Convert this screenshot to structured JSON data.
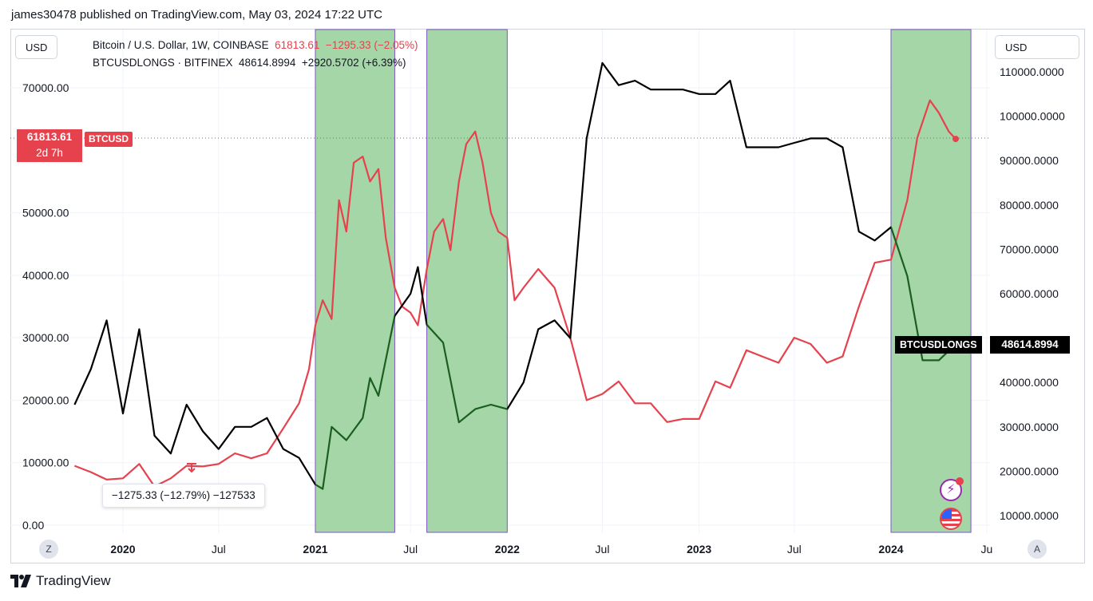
{
  "header": {
    "published": "james30478 published on TradingView.com, May 03, 2024 17:22 UTC"
  },
  "toolbar": {
    "left_currency": "USD",
    "right_currency": "USD"
  },
  "legend": {
    "main_title": "Bitcoin / U.S. Dollar, 1W, COINBASE",
    "main_price": "61813.61",
    "main_change": "−1295.33 (−2.05%)",
    "second_title": "BTCUSDLONGS · BITFINEX",
    "second_price": "48614.8994",
    "second_change": "+2920.5702 (+6.39%)"
  },
  "price_tag": {
    "value": "61813.61",
    "countdown": "2d 7h",
    "symbol": "BTCUSD"
  },
  "longs_tag": {
    "symbol": "BTCUSDLONGS",
    "value": "48614.8994"
  },
  "tooltip": {
    "text": "−1275.33 (−12.79%) −127533"
  },
  "footer": {
    "brand": "TradingView"
  },
  "buttons": {
    "left": "Z",
    "right": "A"
  },
  "icons": {
    "flash": "lightning-icon",
    "flag": "us-flag-icon"
  },
  "colors": {
    "btc": "#e5424d",
    "longs": "#000000",
    "highlight": "#a5d6a7",
    "highlight_border": "#7e57c2",
    "longs_in_zone": "#1b5e20"
  },
  "chart_data": {
    "type": "line",
    "interval": "1W",
    "x_tick_labels": [
      "2020",
      "Jul",
      "2021",
      "Jul",
      "2022",
      "Jul",
      "2023",
      "Jul",
      "2024",
      "Ju"
    ],
    "x_tick_dates": [
      "2020-01-01",
      "2020-07-01",
      "2021-01-01",
      "2021-07-01",
      "2022-01-01",
      "2022-07-01",
      "2023-01-01",
      "2023-07-01",
      "2024-01-01",
      "2024-07-01"
    ],
    "left_axis": {
      "ticks": [
        "0.00",
        "10000.00",
        "20000.00",
        "30000.00",
        "40000.00",
        "50000.00",
        "70000.00"
      ],
      "ylim": [
        0,
        70000
      ]
    },
    "right_axis": {
      "ticks": [
        "10000.0000",
        "20000.0000",
        "30000.0000",
        "40000.0000",
        "60000.0000",
        "70000.0000",
        "80000.0000",
        "90000.0000",
        "100000.0000",
        "110000.0000"
      ],
      "ylim": [
        10000,
        110000
      ]
    },
    "highlight_ranges": [
      [
        "2021-01-01",
        "2021-06-01"
      ],
      [
        "2021-08-01",
        "2022-01-01"
      ],
      [
        "2024-01-01",
        "2024-06-01"
      ]
    ],
    "series": [
      {
        "name": "Bitcoin / U.S. Dollar",
        "axis": "left",
        "points": [
          [
            "2019-10-01",
            9500
          ],
          [
            "2019-11-01",
            8500
          ],
          [
            "2019-12-01",
            7300
          ],
          [
            "2020-01-01",
            7500
          ],
          [
            "2020-02-01",
            9800
          ],
          [
            "2020-03-01",
            6200
          ],
          [
            "2020-04-01",
            7500
          ],
          [
            "2020-05-01",
            9500
          ],
          [
            "2020-06-01",
            9400
          ],
          [
            "2020-07-01",
            9800
          ],
          [
            "2020-08-01",
            11500
          ],
          [
            "2020-09-01",
            10700
          ],
          [
            "2020-10-01",
            11500
          ],
          [
            "2020-11-01",
            15500
          ],
          [
            "2020-12-01",
            19500
          ],
          [
            "2020-12-20",
            25000
          ],
          [
            "2021-01-01",
            32000
          ],
          [
            "2021-01-15",
            36000
          ],
          [
            "2021-02-01",
            33000
          ],
          [
            "2021-02-15",
            52000
          ],
          [
            "2021-03-01",
            47000
          ],
          [
            "2021-03-15",
            58000
          ],
          [
            "2021-04-01",
            59000
          ],
          [
            "2021-04-15",
            55000
          ],
          [
            "2021-05-01",
            57000
          ],
          [
            "2021-05-15",
            46000
          ],
          [
            "2021-06-01",
            38000
          ],
          [
            "2021-06-15",
            35000
          ],
          [
            "2021-07-01",
            34000
          ],
          [
            "2021-07-15",
            32000
          ],
          [
            "2021-08-01",
            41000
          ],
          [
            "2021-08-15",
            47000
          ],
          [
            "2021-09-01",
            49000
          ],
          [
            "2021-09-15",
            44000
          ],
          [
            "2021-10-01",
            55000
          ],
          [
            "2021-10-15",
            61000
          ],
          [
            "2021-11-01",
            63000
          ],
          [
            "2021-11-15",
            58000
          ],
          [
            "2021-12-01",
            50000
          ],
          [
            "2021-12-15",
            47000
          ],
          [
            "2022-01-01",
            46000
          ],
          [
            "2022-01-15",
            36000
          ],
          [
            "2022-02-01",
            38000
          ],
          [
            "2022-03-01",
            41000
          ],
          [
            "2022-04-01",
            38000
          ],
          [
            "2022-05-01",
            30000
          ],
          [
            "2022-06-01",
            20000
          ],
          [
            "2022-07-01",
            21000
          ],
          [
            "2022-08-01",
            23000
          ],
          [
            "2022-09-01",
            19500
          ],
          [
            "2022-10-01",
            19500
          ],
          [
            "2022-11-01",
            16500
          ],
          [
            "2022-12-01",
            17000
          ],
          [
            "2023-01-01",
            17000
          ],
          [
            "2023-02-01",
            23000
          ],
          [
            "2023-03-01",
            22000
          ],
          [
            "2023-04-01",
            28000
          ],
          [
            "2023-05-01",
            27000
          ],
          [
            "2023-06-01",
            26000
          ],
          [
            "2023-07-01",
            30000
          ],
          [
            "2023-08-01",
            29000
          ],
          [
            "2023-09-01",
            26000
          ],
          [
            "2023-10-01",
            27000
          ],
          [
            "2023-11-01",
            35000
          ],
          [
            "2023-12-01",
            42000
          ],
          [
            "2024-01-01",
            42500
          ],
          [
            "2024-02-01",
            52000
          ],
          [
            "2024-02-20",
            62000
          ],
          [
            "2024-03-15",
            68000
          ],
          [
            "2024-04-01",
            66000
          ],
          [
            "2024-04-20",
            63000
          ],
          [
            "2024-05-03",
            61813.61
          ]
        ]
      },
      {
        "name": "BTCUSDLONGS",
        "axis": "right",
        "points": [
          [
            "2019-10-01",
            35000
          ],
          [
            "2019-11-01",
            43000
          ],
          [
            "2019-12-01",
            54000
          ],
          [
            "2020-01-01",
            33000
          ],
          [
            "2020-02-01",
            52000
          ],
          [
            "2020-03-01",
            28000
          ],
          [
            "2020-04-01",
            24000
          ],
          [
            "2020-05-01",
            35000
          ],
          [
            "2020-06-01",
            29000
          ],
          [
            "2020-07-01",
            25000
          ],
          [
            "2020-08-01",
            30000
          ],
          [
            "2020-09-01",
            30000
          ],
          [
            "2020-10-01",
            32000
          ],
          [
            "2020-11-01",
            25000
          ],
          [
            "2020-12-01",
            23000
          ],
          [
            "2021-01-01",
            17000
          ],
          [
            "2021-01-15",
            16000
          ],
          [
            "2021-02-01",
            30000
          ],
          [
            "2021-03-01",
            27000
          ],
          [
            "2021-04-01",
            32000
          ],
          [
            "2021-04-15",
            41000
          ],
          [
            "2021-05-01",
            37000
          ],
          [
            "2021-06-01",
            55000
          ],
          [
            "2021-07-01",
            60000
          ],
          [
            "2021-07-15",
            66000
          ],
          [
            "2021-08-01",
            53000
          ],
          [
            "2021-09-01",
            49000
          ],
          [
            "2021-10-01",
            31000
          ],
          [
            "2021-11-01",
            34000
          ],
          [
            "2021-12-01",
            35000
          ],
          [
            "2022-01-01",
            34000
          ],
          [
            "2022-02-01",
            40000
          ],
          [
            "2022-03-01",
            52000
          ],
          [
            "2022-04-01",
            54000
          ],
          [
            "2022-05-01",
            50000
          ],
          [
            "2022-06-01",
            95000
          ],
          [
            "2022-07-01",
            112000
          ],
          [
            "2022-08-01",
            107000
          ],
          [
            "2022-09-01",
            108000
          ],
          [
            "2022-10-01",
            106000
          ],
          [
            "2022-11-01",
            106000
          ],
          [
            "2022-12-01",
            106000
          ],
          [
            "2023-01-01",
            105000
          ],
          [
            "2023-02-01",
            105000
          ],
          [
            "2023-03-01",
            108000
          ],
          [
            "2023-04-01",
            93000
          ],
          [
            "2023-05-01",
            93000
          ],
          [
            "2023-06-01",
            93000
          ],
          [
            "2023-07-01",
            94000
          ],
          [
            "2023-08-01",
            95000
          ],
          [
            "2023-09-01",
            95000
          ],
          [
            "2023-10-01",
            93000
          ],
          [
            "2023-11-01",
            74000
          ],
          [
            "2023-12-01",
            72000
          ],
          [
            "2024-01-01",
            75000
          ],
          [
            "2024-02-01",
            64000
          ],
          [
            "2024-03-01",
            45000
          ],
          [
            "2024-04-01",
            45000
          ],
          [
            "2024-05-03",
            48614.8994
          ]
        ]
      }
    ]
  }
}
